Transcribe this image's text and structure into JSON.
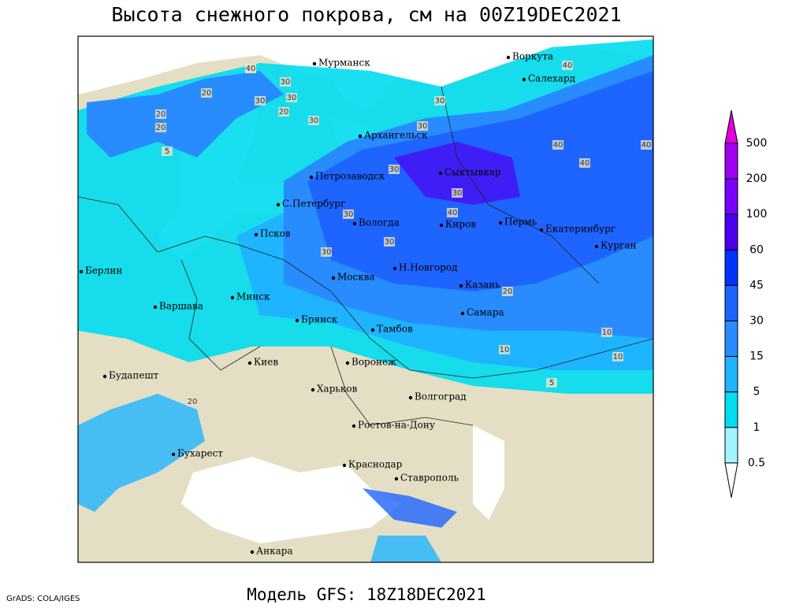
{
  "title": "Высота снежного покрова, см на 00Z19DEC2021",
  "footer": {
    "credit": "GrADS: COLA/IGES",
    "model": "Модель GFS: 18Z18DEC2021"
  },
  "legend": {
    "levels": [
      500,
      200,
      100,
      60,
      45,
      30,
      15,
      5,
      1,
      0.5
    ],
    "colors": [
      "#e000e0",
      "#a000f0",
      "#7800ff",
      "#4b00f0",
      "#0032ff",
      "#1e64ff",
      "#288cff",
      "#1eb4ff",
      "#00dcf0",
      "#a0f5ff",
      "#ffffff"
    ]
  },
  "cities": [
    "Мурманск",
    "Воркута",
    "Салехард",
    "Архангельск",
    "Петрозаводск",
    "Сыктывкар",
    "С.Петербург",
    "Вологда",
    "Киров",
    "Пермь",
    "Екатеринбург",
    "Псков",
    "Курган",
    "Берлин",
    "Н.Новгород",
    "Москва",
    "Казань",
    "Минск",
    "Варшава",
    "Самара",
    "Брянск",
    "Тамбов",
    "Киев",
    "Воронеж",
    "Будапешт",
    "Харьков",
    "Волгоград",
    "Ростов-на-Дону",
    "Бухарест",
    "Краснодар",
    "Ставрополь",
    "Анкара"
  ],
  "contour_labels": [
    40,
    30,
    20,
    20,
    30,
    30,
    5,
    30,
    40,
    40,
    30,
    30,
    40,
    30,
    30,
    30,
    40,
    40,
    40,
    30,
    20,
    10,
    10,
    10,
    5,
    20,
    30,
    20,
    20
  ]
}
